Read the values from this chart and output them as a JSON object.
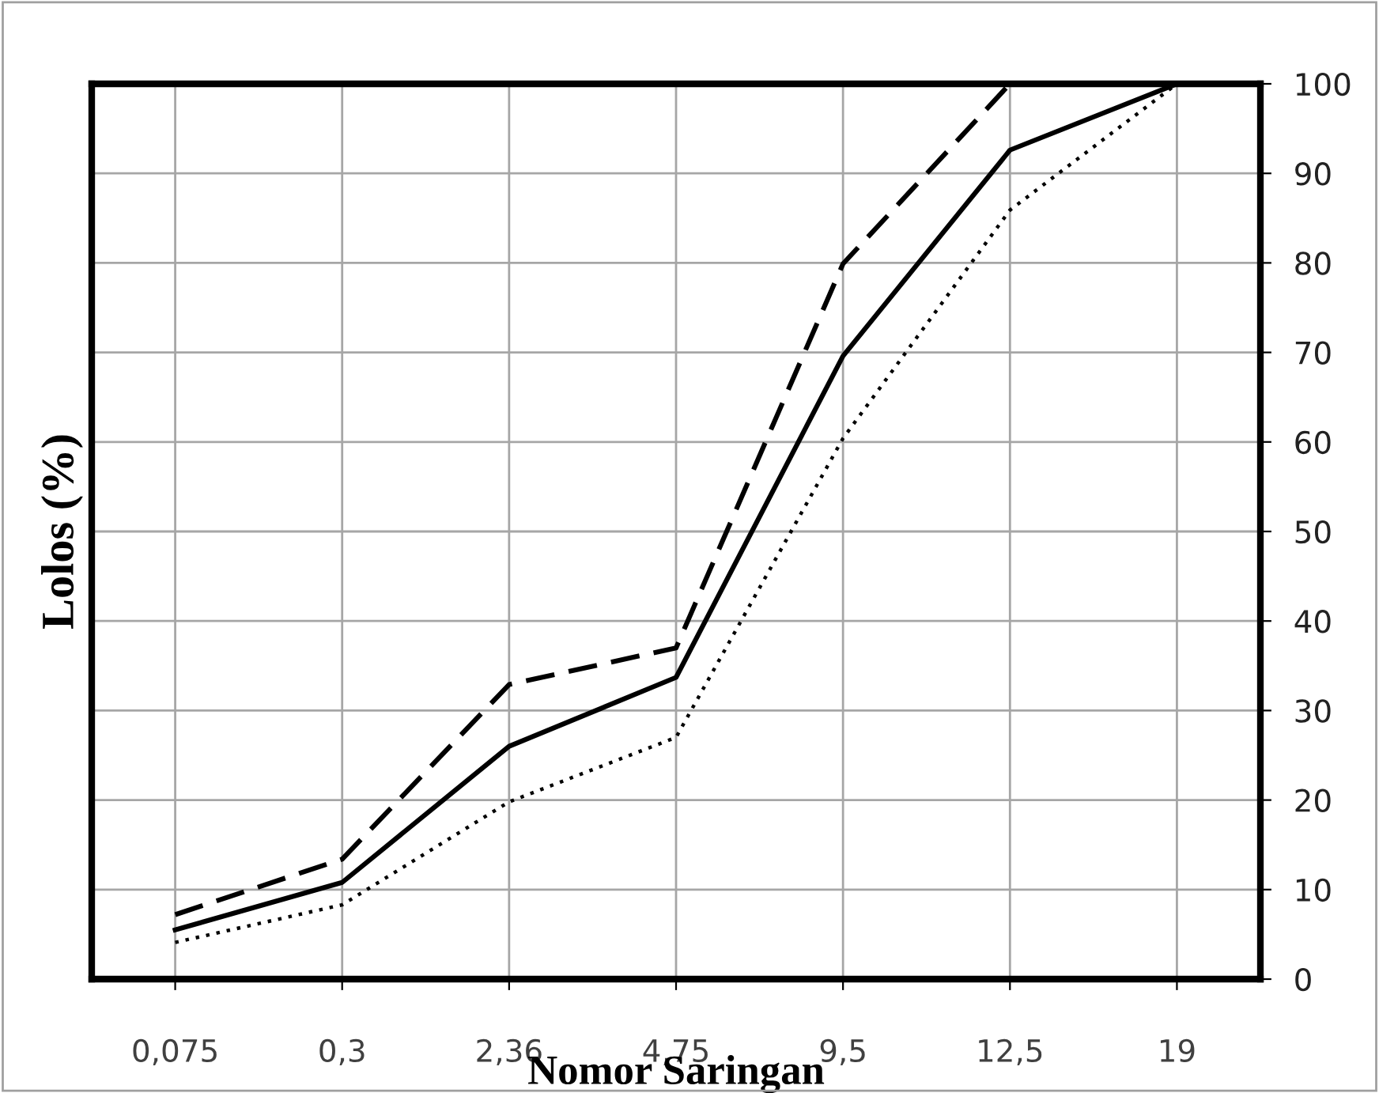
{
  "chart_data": {
    "type": "line",
    "xlabel": "Nomor Saringan",
    "ylabel": "Lolos (%)",
    "categories": [
      "0,075",
      "0,3",
      "2,36",
      "4,75",
      "9,5",
      "12,5",
      "19"
    ],
    "series": [
      {
        "color": "#000000",
        "line_style": "solid",
        "values": [
          5.5,
          10.8,
          26,
          33.7,
          69.6,
          92.6,
          100
        ]
      },
      {
        "color": "#000000",
        "line_style": "dashed",
        "values": [
          7.2,
          13.4,
          32.9,
          37,
          79.9,
          100,
          100
        ]
      },
      {
        "color": "#000000",
        "line_style": "dotted",
        "values": [
          4.1,
          8.3,
          19.8,
          27,
          60.4,
          85.9,
          100
        ]
      }
    ],
    "ylim": [
      0,
      100
    ],
    "yticks": [
      0,
      10,
      20,
      30,
      40,
      50,
      60,
      70,
      80,
      90,
      100
    ],
    "grid": true,
    "legend": false,
    "marker": "none"
  }
}
